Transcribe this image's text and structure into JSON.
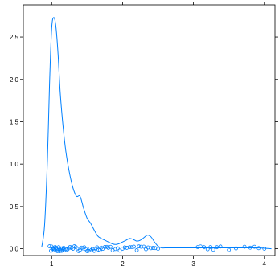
{
  "chart_data": {
    "type": "density",
    "title": "",
    "xlabel": "",
    "ylabel": "",
    "xlim": [
      0.6,
      4.15
    ],
    "ylim": [
      -0.08,
      2.88
    ],
    "x_ticks": [
      {
        "value": 1,
        "label": "1"
      },
      {
        "value": 2,
        "label": "2"
      },
      {
        "value": 3,
        "label": "3"
      },
      {
        "value": 4,
        "label": "4"
      }
    ],
    "y_ticks": [
      {
        "value": 0.0,
        "label": "0.0"
      },
      {
        "value": 0.5,
        "label": "0.5"
      },
      {
        "value": 1.0,
        "label": "1.0"
      },
      {
        "value": 1.5,
        "label": "1.5"
      },
      {
        "value": 2.0,
        "label": "2.0"
      },
      {
        "value": 2.5,
        "label": "2.5"
      }
    ],
    "series": [
      {
        "kind": "density-curve",
        "color": "#0080ff",
        "x": [
          0.86,
          0.9,
          0.94,
          0.97,
          1.0,
          1.03,
          1.06,
          1.09,
          1.12,
          1.16,
          1.2,
          1.25,
          1.3,
          1.35,
          1.4,
          1.45,
          1.5,
          1.55,
          1.6,
          1.65,
          1.7,
          1.75,
          1.8,
          1.85,
          1.9,
          1.95,
          2.0,
          2.05,
          2.1,
          2.15,
          2.2,
          2.25,
          2.3,
          2.35,
          2.4,
          2.45,
          2.5,
          2.55,
          2.6,
          2.7,
          2.9,
          3.1,
          3.3,
          3.5,
          3.7,
          3.9,
          4.1
        ],
        "y": [
          0.02,
          0.28,
          1.05,
          1.95,
          2.6,
          2.73,
          2.62,
          2.3,
          1.85,
          1.45,
          1.15,
          0.9,
          0.72,
          0.62,
          0.62,
          0.48,
          0.36,
          0.3,
          0.22,
          0.15,
          0.12,
          0.1,
          0.08,
          0.06,
          0.05,
          0.06,
          0.08,
          0.1,
          0.12,
          0.11,
          0.09,
          0.1,
          0.13,
          0.16,
          0.14,
          0.08,
          0.03,
          0.01,
          0.01,
          0.01,
          0.01,
          0.01,
          0.01,
          0.01,
          0.01,
          0.01,
          0.0
        ]
      },
      {
        "kind": "rug-points",
        "color": "#0080ff",
        "y_level": 0.0,
        "x": [
          0.97,
          0.99,
          1.0,
          1.01,
          1.02,
          1.03,
          1.04,
          1.05,
          1.06,
          1.07,
          1.08,
          1.09,
          1.1,
          1.11,
          1.12,
          1.13,
          1.14,
          1.15,
          1.16,
          1.17,
          1.18,
          1.2,
          1.22,
          1.24,
          1.26,
          1.28,
          1.3,
          1.32,
          1.34,
          1.36,
          1.38,
          1.4,
          1.42,
          1.44,
          1.46,
          1.48,
          1.5,
          1.52,
          1.54,
          1.56,
          1.58,
          1.6,
          1.62,
          1.64,
          1.66,
          1.68,
          1.7,
          1.72,
          1.75,
          1.78,
          1.8,
          1.83,
          1.86,
          1.9,
          1.93,
          1.96,
          2.0,
          2.03,
          2.06,
          2.1,
          2.13,
          2.16,
          2.2,
          2.23,
          2.26,
          2.3,
          2.33,
          2.36,
          2.4,
          2.43,
          2.46,
          2.5,
          3.06,
          3.1,
          3.15,
          3.2,
          3.24,
          3.28,
          3.33,
          3.38,
          3.5,
          3.6,
          3.72,
          3.8,
          3.86,
          3.92,
          4.0
        ]
      }
    ]
  }
}
